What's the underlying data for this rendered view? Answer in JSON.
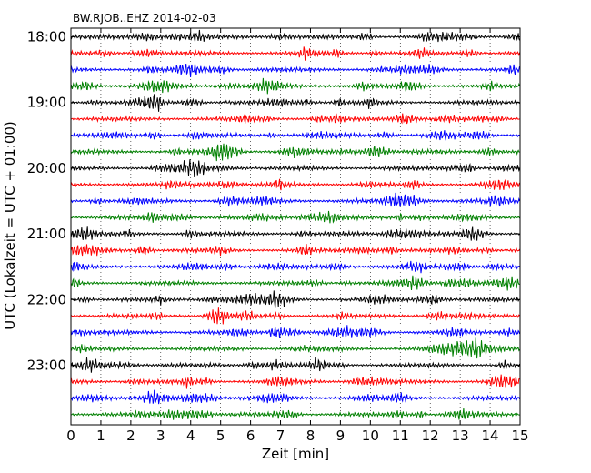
{
  "chart_data": {
    "type": "line",
    "subtype": "dayplot-seismogram",
    "title": "BW.RJOB..EHZ 2014-02-03",
    "xlabel": "Zeit  [min]",
    "ylabel": "UTC (Lokalzeit = UTC + 01:00)",
    "xlim": [
      0,
      15
    ],
    "x_ticks": [
      "0",
      "1",
      "2",
      "3",
      "4",
      "5",
      "6",
      "7",
      "8",
      "9",
      "10",
      "11",
      "12",
      "13",
      "14",
      "15"
    ],
    "y_tick_labels": [
      "18:00",
      "19:00",
      "20:00",
      "21:00",
      "22:00",
      "23:00"
    ],
    "traces_per_hour": 4,
    "trace_count": 24,
    "trace_colors": [
      "#000000",
      "#ff0000",
      "#0000ff",
      "#008000"
    ],
    "grid": "x-dotted"
  }
}
